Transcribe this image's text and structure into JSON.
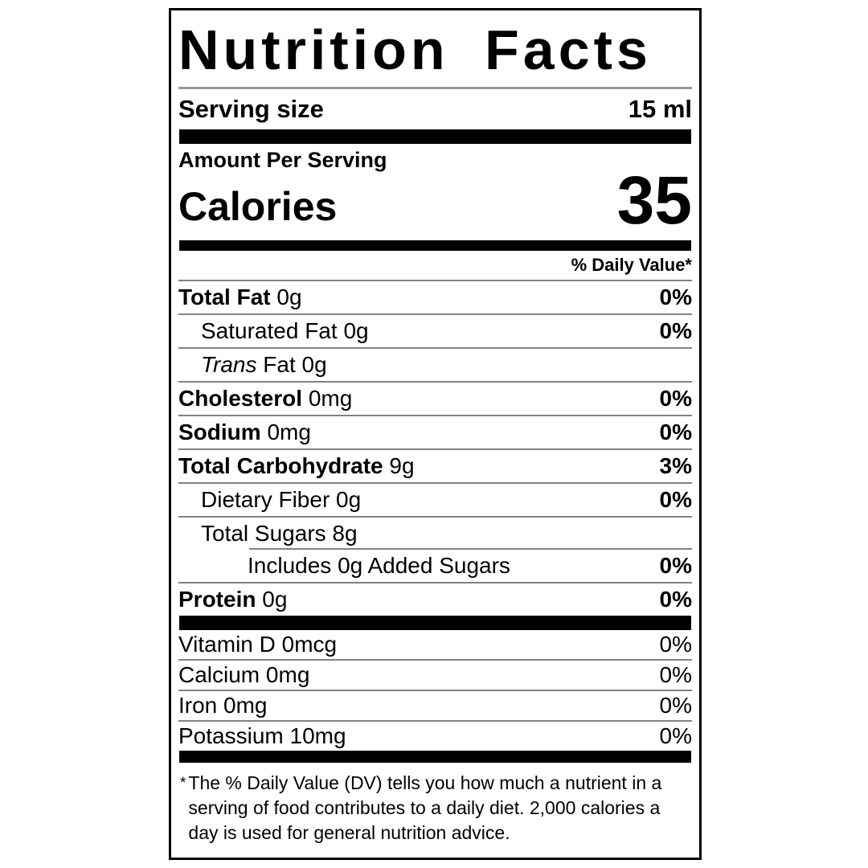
{
  "colors": {
    "text": "#000000",
    "background": "#ffffff",
    "divider": "#828282",
    "bar": "#000000"
  },
  "label": {
    "title": "Nutrition Facts",
    "serving_size": {
      "label": "Serving size",
      "value": "15 ml"
    },
    "amount_per_serving": "Amount Per Serving",
    "calories": {
      "label": "Calories",
      "value": "35"
    },
    "daily_value_header": "% Daily Value*",
    "nutrients": [
      {
        "name": "Total Fat",
        "amount": "0g",
        "dv": "0%"
      },
      {
        "name": "Saturated Fat",
        "amount": "0g",
        "dv": "0%"
      },
      {
        "name_italic": "Trans",
        "name": "Fat",
        "amount": "0g",
        "dv": ""
      },
      {
        "name": "Cholesterol",
        "amount": "0mg",
        "dv": "0%"
      },
      {
        "name": "Sodium",
        "amount": "0mg",
        "dv": "0%"
      },
      {
        "name": "Total Carbohydrate",
        "amount": "9g",
        "dv": "3%"
      },
      {
        "name": "Dietary Fiber",
        "amount": "0g",
        "dv": "0%"
      },
      {
        "name": "Total Sugars",
        "amount": "8g",
        "dv": ""
      },
      {
        "name": "Includes 0g Added Sugars",
        "amount": "",
        "dv": "0%"
      },
      {
        "name": "Protein",
        "amount": "0g",
        "dv": "0%"
      }
    ],
    "micronutrients": [
      {
        "name": "Vitamin D",
        "amount": "0mcg",
        "dv": "0%"
      },
      {
        "name": "Calcium",
        "amount": "0mg",
        "dv": "0%"
      },
      {
        "name": "Iron",
        "amount": "0mg",
        "dv": "0%"
      },
      {
        "name": "Potassium",
        "amount": "10mg",
        "dv": "0%"
      }
    ],
    "footnote_mark": "*",
    "footnote": "The % Daily Value (DV) tells you how much a nutrient in a serving of food contributes to a daily diet. 2,000 calories a day is used for general nutrition advice."
  }
}
